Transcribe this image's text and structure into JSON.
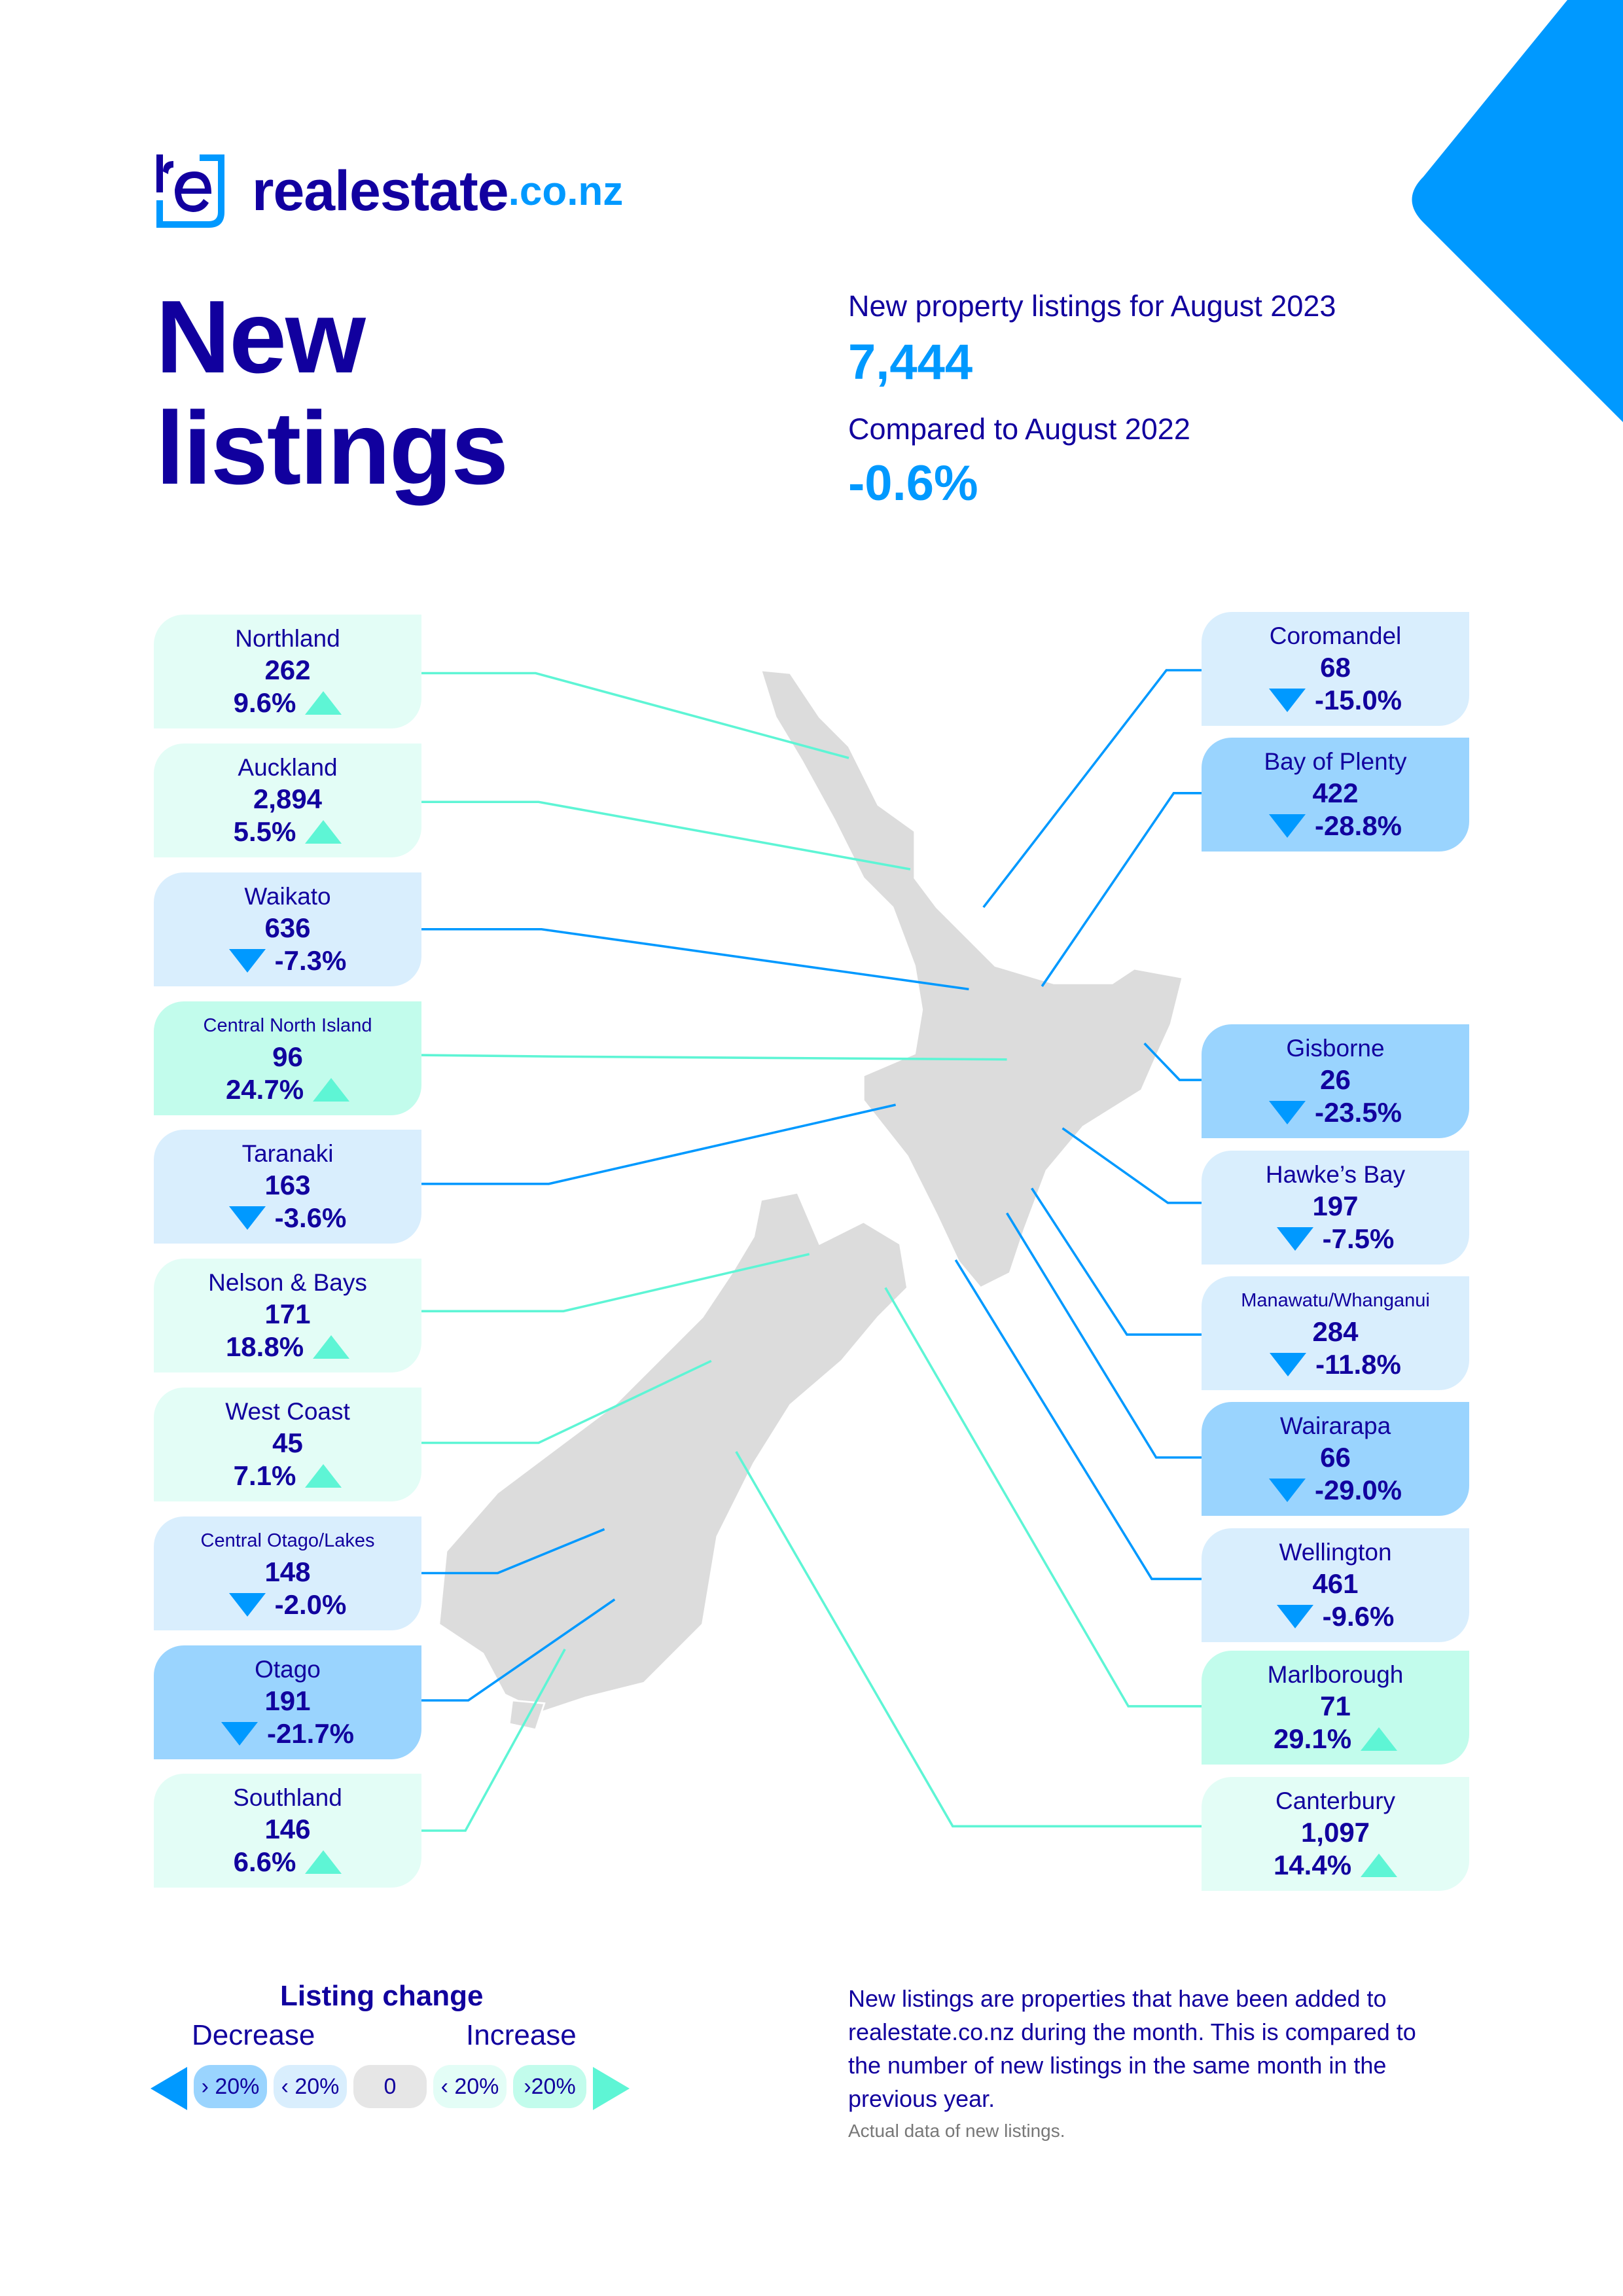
{
  "brand": {
    "name": "realestate",
    "tld": ".co.nz"
  },
  "title": {
    "line1": "New",
    "line2": "listings"
  },
  "summary": {
    "period_label": "New property listings for August 2023",
    "total": "7,444",
    "compare_label": "Compared to August 2022",
    "change": "-0.6%"
  },
  "colors": {
    "text": "#11009e",
    "accent_blue": "#0099ff",
    "accent_teal": "#5ef5d5",
    "decrease_over_20": "#9ad4fe",
    "decrease_under_20": "#d9eefd",
    "no_change": "#e6e6e6",
    "increase_under_20": "#e3fdf6",
    "increase_over_20": "#c2fcec",
    "map_land": "#dcdcdc"
  },
  "regions_left": [
    {
      "name": "Northland",
      "count": "262",
      "change": "9.6%",
      "direction": "up",
      "band": "increase_under_20"
    },
    {
      "name": "Auckland",
      "count": "2,894",
      "change": "5.5%",
      "direction": "up",
      "band": "increase_under_20"
    },
    {
      "name": "Waikato",
      "count": "636",
      "change": "-7.3%",
      "direction": "down",
      "band": "decrease_under_20"
    },
    {
      "name": "Central North Island",
      "count": "96",
      "change": "24.7%",
      "direction": "up",
      "band": "increase_over_20"
    },
    {
      "name": "Taranaki",
      "count": "163",
      "change": "-3.6%",
      "direction": "down",
      "band": "decrease_under_20"
    },
    {
      "name": "Nelson & Bays",
      "count": "171",
      "change": "18.8%",
      "direction": "up",
      "band": "increase_under_20"
    },
    {
      "name": "West Coast",
      "count": "45",
      "change": "7.1%",
      "direction": "up",
      "band": "increase_under_20"
    },
    {
      "name": "Central Otago/Lakes",
      "count": "148",
      "change": "-2.0%",
      "direction": "down",
      "band": "decrease_under_20"
    },
    {
      "name": "Otago",
      "count": "191",
      "change": "-21.7%",
      "direction": "down",
      "band": "decrease_over_20"
    },
    {
      "name": "Southland",
      "count": "146",
      "change": "6.6%",
      "direction": "up",
      "band": "increase_under_20"
    }
  ],
  "regions_right": [
    {
      "name": "Coromandel",
      "count": "68",
      "change": "-15.0%",
      "direction": "down",
      "band": "decrease_under_20"
    },
    {
      "name": "Bay of Plenty",
      "count": "422",
      "change": "-28.8%",
      "direction": "down",
      "band": "decrease_over_20"
    },
    {
      "name": "Gisborne",
      "count": "26",
      "change": "-23.5%",
      "direction": "down",
      "band": "decrease_over_20"
    },
    {
      "name": "Hawke’s Bay",
      "count": "197",
      "change": "-7.5%",
      "direction": "down",
      "band": "decrease_under_20"
    },
    {
      "name": "Manawatu/Whanganui",
      "count": "284",
      "change": "-11.8%",
      "direction": "down",
      "band": "decrease_under_20"
    },
    {
      "name": "Wairarapa",
      "count": "66",
      "change": "-29.0%",
      "direction": "down",
      "band": "decrease_over_20"
    },
    {
      "name": "Wellington",
      "count": "461",
      "change": "-9.6%",
      "direction": "down",
      "band": "decrease_under_20"
    },
    {
      "name": "Marlborough",
      "count": "71",
      "change": "29.1%",
      "direction": "up",
      "band": "increase_over_20"
    },
    {
      "name": "Canterbury",
      "count": "1,097",
      "change": "14.4%",
      "direction": "up",
      "band": "increase_under_20"
    }
  ],
  "legend": {
    "title": "Listing change",
    "decrease_label": "Decrease",
    "increase_label": "Increase",
    "chips": [
      {
        "label": "› 20%",
        "band": "decrease_over_20"
      },
      {
        "label": "‹ 20%",
        "band": "decrease_under_20"
      },
      {
        "label": "0",
        "band": "no_change"
      },
      {
        "label": "‹ 20%",
        "band": "increase_under_20"
      },
      {
        "label": "›20%",
        "band": "increase_over_20"
      }
    ]
  },
  "note": {
    "text": "New listings are properties that have been added to realestate.co.nz during the month. This is compared to the number of new listings in the same month in the previous year.",
    "sub": "Actual data of new listings."
  }
}
